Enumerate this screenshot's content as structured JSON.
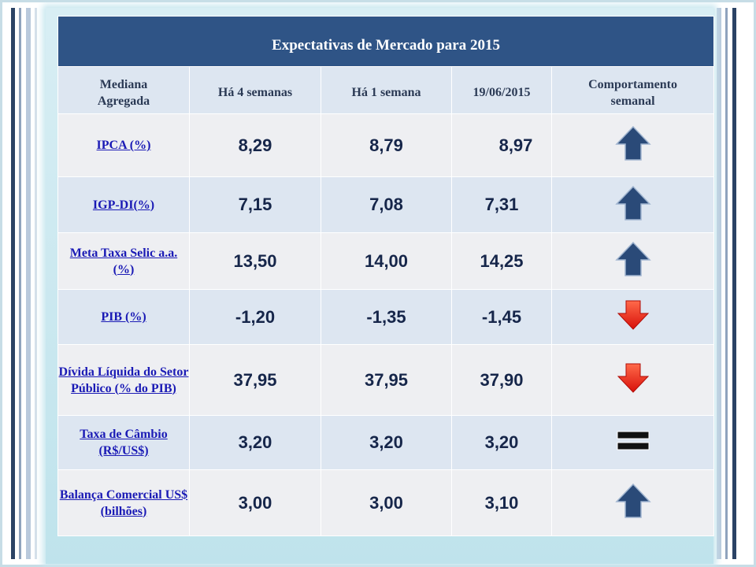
{
  "title": "Expectativas de Mercado para 2015",
  "columns": [
    "Mediana Agregada",
    "Há 4 semanas",
    "Há 1 semana",
    "19/06/2015",
    "Comportamento semanal"
  ],
  "rows": [
    {
      "label": "IPCA (%)",
      "v4": "8,29",
      "v1": "8,79",
      "vd": "8,97",
      "trend": "up-arrow-icon"
    },
    {
      "label": "IGP-DI(%)",
      "v4": "7,15",
      "v1": "7,08",
      "vd": "7,31",
      "trend": "up-arrow-icon"
    },
    {
      "label": "Meta Taxa Selic a.a. (%)",
      "v4": "13,50",
      "v1": "14,00",
      "vd": "14,25",
      "trend": "up-arrow-icon"
    },
    {
      "label": "PIB (%)",
      "v4": "-1,20",
      "v1": "-1,35",
      "vd": "-1,45",
      "trend": "down-arrow-icon"
    },
    {
      "label": "Dívida Líquida do Setor Público (% do PIB)",
      "v4": "37,95",
      "v1": "37,95",
      "vd": "37,90",
      "trend": "down-arrow-icon"
    },
    {
      "label": "Taxa de Câmbio (R$/US$)",
      "v4": "3,20",
      "v1": "3,20",
      "vd": "3,20",
      "trend": "equal-icon"
    },
    {
      "label": "Balança Comercial US$ (bilhões)",
      "v4": "3,00",
      "v1": "3,00",
      "vd": "3,10",
      "trend": "up-arrow-icon"
    }
  ],
  "colors": {
    "header": "#2f5486",
    "up_arrow": "#2a4a78",
    "down_arrow": "#e8201a",
    "link": "#1a1ab5"
  }
}
